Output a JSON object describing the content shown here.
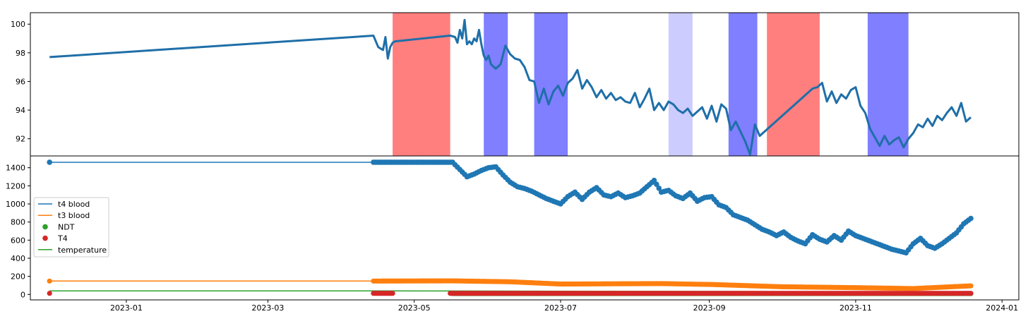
{
  "chart_data": [
    {
      "type": "line",
      "title": "",
      "xlabel": "",
      "ylabel": "",
      "x_range": [
        "2022-11-22",
        "2024-01-08"
      ],
      "ylim": [
        90.8,
        100.8
      ],
      "y_ticks": [
        92,
        94,
        96,
        98,
        100
      ],
      "y_tick_labels": [
        "92",
        "94",
        "96",
        "98",
        "100"
      ],
      "grid": false,
      "line_color": "#1f6fa8",
      "shaded_periods": [
        {
          "start": "2023-04-22",
          "end": "2023-05-16",
          "color": "#ff7f7f"
        },
        {
          "start": "2023-05-30",
          "end": "2023-06-09",
          "color": "#7f7fff"
        },
        {
          "start": "2023-06-20",
          "end": "2023-07-04",
          "color": "#7f7fff"
        },
        {
          "start": "2023-08-15",
          "end": "2023-08-25",
          "color": "#ccccff"
        },
        {
          "start": "2023-09-09",
          "end": "2023-09-21",
          "color": "#7f7fff"
        },
        {
          "start": "2023-09-25",
          "end": "2023-10-17",
          "color": "#ff7f7f"
        },
        {
          "start": "2023-11-06",
          "end": "2023-11-23",
          "color": "#7f7fff"
        }
      ],
      "series": [
        {
          "x": [
            "2022-11-30",
            "2023-04-14",
            "2023-04-16",
            "2023-04-17",
            "2023-04-18",
            "2023-04-19",
            "2023-04-20",
            "2023-04-21",
            "2023-04-22",
            "2023-04-23",
            "2023-05-16",
            "2023-05-18",
            "2023-05-19",
            "2023-05-20",
            "2023-05-21",
            "2023-05-22",
            "2023-05-23",
            "2023-05-24",
            "2023-05-25",
            "2023-05-26",
            "2023-05-27",
            "2023-05-28",
            "2023-05-29",
            "2023-05-30",
            "2023-05-31",
            "2023-06-01",
            "2023-06-02",
            "2023-06-04",
            "2023-06-06",
            "2023-06-08",
            "2023-06-10",
            "2023-06-12",
            "2023-06-14",
            "2023-06-16",
            "2023-06-18",
            "2023-06-20",
            "2023-06-22",
            "2023-06-24",
            "2023-06-26",
            "2023-06-28",
            "2023-06-30",
            "2023-07-02",
            "2023-07-04",
            "2023-07-06",
            "2023-07-08",
            "2023-07-10",
            "2023-07-12",
            "2023-07-14",
            "2023-07-16",
            "2023-07-18",
            "2023-07-20",
            "2023-07-22",
            "2023-07-24",
            "2023-07-26",
            "2023-07-28",
            "2023-07-30",
            "2023-08-01",
            "2023-08-03",
            "2023-08-05",
            "2023-08-07",
            "2023-08-09",
            "2023-08-11",
            "2023-08-13",
            "2023-08-15",
            "2023-08-17",
            "2023-08-19",
            "2023-08-21",
            "2023-08-23",
            "2023-08-25",
            "2023-08-27",
            "2023-08-29",
            "2023-08-31",
            "2023-09-02",
            "2023-09-04",
            "2023-09-06",
            "2023-09-08",
            "2023-09-10",
            "2023-09-12",
            "2023-09-14",
            "2023-09-16",
            "2023-09-18",
            "2023-09-20",
            "2023-09-22",
            "2023-10-14",
            "2023-10-16",
            "2023-10-18",
            "2023-10-20",
            "2023-10-22",
            "2023-10-24",
            "2023-10-26",
            "2023-10-28",
            "2023-10-30",
            "2023-11-01",
            "2023-11-03",
            "2023-11-05",
            "2023-11-07",
            "2023-11-09",
            "2023-11-11",
            "2023-11-13",
            "2023-11-15",
            "2023-11-17",
            "2023-11-19",
            "2023-11-21",
            "2023-11-23",
            "2023-11-25",
            "2023-11-27",
            "2023-11-29",
            "2023-12-01",
            "2023-12-03",
            "2023-12-05",
            "2023-12-07",
            "2023-12-09",
            "2023-12-11",
            "2023-12-13",
            "2023-12-15",
            "2023-12-17",
            "2023-12-19"
          ],
          "values": [
            97.7,
            99.2,
            98.4,
            98.3,
            98.2,
            99.1,
            97.6,
            98.4,
            98.7,
            98.8,
            99.2,
            99.1,
            98.7,
            99.6,
            99.0,
            100.3,
            98.6,
            98.8,
            98.6,
            99.0,
            98.8,
            99.6,
            98.6,
            97.8,
            97.5,
            97.8,
            97.2,
            96.9,
            97.2,
            98.5,
            97.9,
            97.6,
            97.5,
            97.0,
            96.1,
            96.0,
            94.5,
            95.5,
            94.4,
            95.3,
            95.7,
            95.0,
            95.9,
            96.2,
            96.8,
            95.5,
            96.1,
            95.6,
            94.9,
            95.4,
            94.8,
            95.2,
            94.7,
            94.9,
            94.6,
            94.5,
            95.2,
            94.2,
            94.8,
            95.5,
            94.0,
            94.5,
            94.0,
            94.6,
            94.4,
            94.0,
            93.8,
            94.1,
            93.6,
            93.9,
            94.2,
            93.4,
            94.3,
            93.2,
            94.4,
            94.1,
            92.6,
            93.2,
            92.5,
            91.8,
            90.9,
            93.0,
            92.2,
            95.5,
            95.6,
            95.9,
            94.6,
            95.3,
            94.5,
            95.1,
            94.8,
            95.4,
            95.6,
            94.3,
            93.8,
            92.7,
            92.1,
            91.5,
            92.2,
            91.6,
            91.9,
            92.1,
            91.4,
            92.0,
            92.4,
            93.0,
            92.8,
            93.4,
            92.9,
            93.6,
            93.3,
            93.8,
            94.2,
            93.6,
            94.5,
            93.2,
            93.5
          ]
        }
      ]
    },
    {
      "type": "scatter",
      "title": "",
      "xlabel": "",
      "ylabel": "",
      "x_range": [
        "2022-11-22",
        "2024-01-08"
      ],
      "ylim": [
        -60,
        1530
      ],
      "y_ticks": [
        0,
        200,
        400,
        600,
        800,
        1000,
        1200,
        1400
      ],
      "y_tick_labels": [
        "0",
        "200",
        "400",
        "600",
        "800",
        "1000",
        "1200",
        "1400"
      ],
      "x_ticks": [
        "2023-01-01",
        "2023-03-01",
        "2023-05-01",
        "2023-07-01",
        "2023-09-01",
        "2023-11-01",
        "2024-01-01"
      ],
      "x_tick_labels": [
        "2023-01",
        "2023-03",
        "2023-05",
        "2023-07",
        "2023-09",
        "2023-11",
        "2024-01"
      ],
      "grid": false,
      "legend_position": "center-left",
      "legend": [
        {
          "label": "t4 blood",
          "marker": "line",
          "color": "#1f77b4"
        },
        {
          "label": "t3 blood",
          "marker": "line",
          "color": "#ff7f0e"
        },
        {
          "label": "NDT",
          "marker": "dot",
          "color": "#2ca02c"
        },
        {
          "label": "T4",
          "marker": "dot",
          "color": "#d62728"
        },
        {
          "label": "temperature",
          "marker": "line",
          "color": "#2ca02c"
        }
      ],
      "series": [
        {
          "name": "t4 blood",
          "color": "#1f77b4",
          "kind": "line+markers",
          "x": [
            "2022-11-30",
            "2023-04-14",
            "2023-05-17",
            "2023-05-20",
            "2023-05-23",
            "2023-05-26",
            "2023-05-29",
            "2023-06-01",
            "2023-06-04",
            "2023-06-07",
            "2023-06-10",
            "2023-06-13",
            "2023-06-16",
            "2023-06-19",
            "2023-06-22",
            "2023-06-25",
            "2023-06-28",
            "2023-07-01",
            "2023-07-04",
            "2023-07-07",
            "2023-07-10",
            "2023-07-13",
            "2023-07-16",
            "2023-07-19",
            "2023-07-22",
            "2023-07-25",
            "2023-07-28",
            "2023-07-31",
            "2023-08-03",
            "2023-08-06",
            "2023-08-09",
            "2023-08-12",
            "2023-08-15",
            "2023-08-18",
            "2023-08-21",
            "2023-08-24",
            "2023-08-27",
            "2023-08-30",
            "2023-09-02",
            "2023-09-05",
            "2023-09-08",
            "2023-09-11",
            "2023-09-14",
            "2023-09-17",
            "2023-09-20",
            "2023-09-23",
            "2023-09-26",
            "2023-09-29",
            "2023-10-02",
            "2023-10-05",
            "2023-10-08",
            "2023-10-11",
            "2023-10-14",
            "2023-10-17",
            "2023-10-20",
            "2023-10-23",
            "2023-10-26",
            "2023-10-29",
            "2023-11-01",
            "2023-11-04",
            "2023-11-07",
            "2023-11-10",
            "2023-11-13",
            "2023-11-16",
            "2023-11-19",
            "2023-11-22",
            "2023-11-25",
            "2023-11-28",
            "2023-12-01",
            "2023-12-04",
            "2023-12-07",
            "2023-12-10",
            "2023-12-13",
            "2023-12-16",
            "2023-12-19"
          ],
          "values": [
            1460,
            1460,
            1460,
            1380,
            1300,
            1330,
            1370,
            1400,
            1410,
            1320,
            1240,
            1190,
            1170,
            1140,
            1100,
            1060,
            1030,
            1000,
            1080,
            1130,
            1050,
            1130,
            1180,
            1100,
            1080,
            1120,
            1070,
            1090,
            1120,
            1190,
            1260,
            1130,
            1150,
            1090,
            1060,
            1120,
            1030,
            1070,
            1080,
            990,
            960,
            880,
            850,
            820,
            770,
            720,
            690,
            650,
            690,
            630,
            590,
            560,
            660,
            610,
            580,
            650,
            600,
            700,
            650,
            620,
            590,
            560,
            530,
            500,
            480,
            460,
            560,
            620,
            540,
            510,
            560,
            620,
            680,
            780,
            840
          ]
        },
        {
          "name": "t3 blood",
          "color": "#ff7f0e",
          "kind": "line+markers",
          "x": [
            "2022-11-30",
            "2023-04-14",
            "2023-05-17",
            "2023-06-10",
            "2023-07-01",
            "2023-08-12",
            "2023-09-02",
            "2023-10-01",
            "2023-11-01",
            "2023-11-25",
            "2023-12-19"
          ],
          "values": [
            148,
            148,
            150,
            140,
            115,
            120,
            110,
            85,
            75,
            65,
            95
          ]
        },
        {
          "name": "NDT",
          "color": "#2ca02c",
          "kind": "markers",
          "x": [
            "2023-05-17",
            "2023-07-01",
            "2023-09-01",
            "2023-11-01",
            "2023-12-19"
          ],
          "values": [
            10,
            10,
            10,
            10,
            10
          ]
        },
        {
          "name": "T4",
          "color": "#d62728",
          "kind": "markers",
          "x": [
            "2022-11-30",
            "2023-04-14",
            "2023-04-22",
            "2023-05-16",
            "2023-12-19"
          ],
          "values": [
            12,
            12,
            12,
            12,
            12
          ]
        },
        {
          "name": "temperature",
          "color": "#2ca02c",
          "kind": "line",
          "x": [
            "2022-11-30",
            "2023-04-14",
            "2023-05-16",
            "2023-07-01",
            "2023-10-01",
            "2023-12-19"
          ],
          "values": [
            40,
            40,
            38,
            36,
            32,
            32
          ]
        }
      ]
    }
  ]
}
